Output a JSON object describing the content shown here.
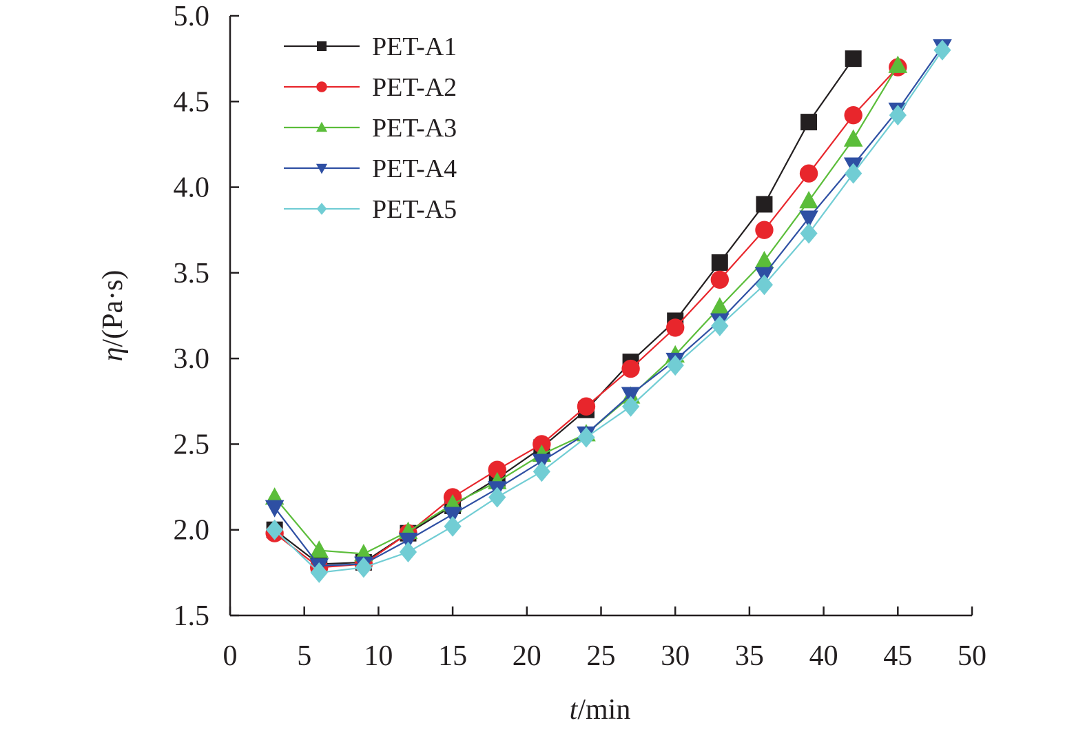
{
  "chart_data": {
    "type": "line",
    "title": "",
    "xlabel": {
      "var": "t",
      "unit": "/min"
    },
    "ylabel": {
      "var": "η",
      "unit": "/(Pa·s)"
    },
    "xlim": [
      0,
      50
    ],
    "ylim": [
      1.5,
      5.0
    ],
    "xticks": [
      0,
      5,
      10,
      15,
      20,
      25,
      30,
      35,
      40,
      45,
      50
    ],
    "xtick_labels": [
      "0",
      "5",
      "10",
      "15",
      "20",
      "25",
      "30",
      "35",
      "40",
      "45",
      "50"
    ],
    "yticks": [
      1.5,
      2.0,
      2.5,
      3.0,
      3.5,
      4.0,
      4.5,
      5.0
    ],
    "ytick_labels": [
      "1.5",
      "2.0",
      "2.5",
      "3.0",
      "3.5",
      "4.0",
      "4.5",
      "5.0"
    ],
    "grid": false,
    "legend_position": "top-left",
    "series": [
      {
        "name": "PET-A1",
        "color": "#231f20",
        "marker": "square",
        "x": [
          3,
          6,
          9,
          12,
          15,
          18,
          21,
          24,
          27,
          30,
          33,
          36,
          39,
          42
        ],
        "values": [
          2.0,
          1.8,
          1.81,
          1.98,
          2.14,
          2.3,
          2.48,
          2.7,
          2.98,
          3.22,
          3.56,
          3.9,
          4.38,
          4.75
        ]
      },
      {
        "name": "PET-A2",
        "color": "#e8262c",
        "marker": "circle",
        "x": [
          3,
          6,
          9,
          12,
          15,
          18,
          21,
          24,
          27,
          30,
          33,
          36,
          39,
          42,
          45
        ],
        "values": [
          1.98,
          1.78,
          1.8,
          1.98,
          2.19,
          2.35,
          2.5,
          2.72,
          2.94,
          3.18,
          3.46,
          3.75,
          4.08,
          4.42,
          4.7
        ]
      },
      {
        "name": "PET-A3",
        "color": "#5bbd3a",
        "marker": "triangle-up",
        "x": [
          3,
          6,
          9,
          12,
          15,
          18,
          21,
          24,
          27,
          30,
          33,
          36,
          39,
          42,
          45
        ],
        "values": [
          2.19,
          1.88,
          1.86,
          1.99,
          2.15,
          2.28,
          2.44,
          2.56,
          2.78,
          3.02,
          3.3,
          3.57,
          3.92,
          4.28,
          4.71
        ]
      },
      {
        "name": "PET-A4",
        "color": "#2e4fa3",
        "marker": "triangle-down",
        "x": [
          3,
          6,
          9,
          12,
          15,
          18,
          21,
          24,
          27,
          30,
          33,
          36,
          39,
          42,
          45,
          48
        ],
        "values": [
          2.13,
          1.79,
          1.8,
          1.94,
          2.09,
          2.24,
          2.4,
          2.56,
          2.79,
          2.99,
          3.22,
          3.49,
          3.82,
          4.13,
          4.45,
          4.82
        ]
      },
      {
        "name": "PET-A5",
        "color": "#71cdd4",
        "marker": "diamond",
        "x": [
          3,
          6,
          9,
          12,
          15,
          18,
          21,
          24,
          27,
          30,
          33,
          36,
          39,
          42,
          45,
          48
        ],
        "values": [
          2.0,
          1.75,
          1.78,
          1.87,
          2.02,
          2.19,
          2.34,
          2.54,
          2.72,
          2.96,
          3.19,
          3.43,
          3.73,
          4.08,
          4.42,
          4.8
        ]
      }
    ]
  }
}
